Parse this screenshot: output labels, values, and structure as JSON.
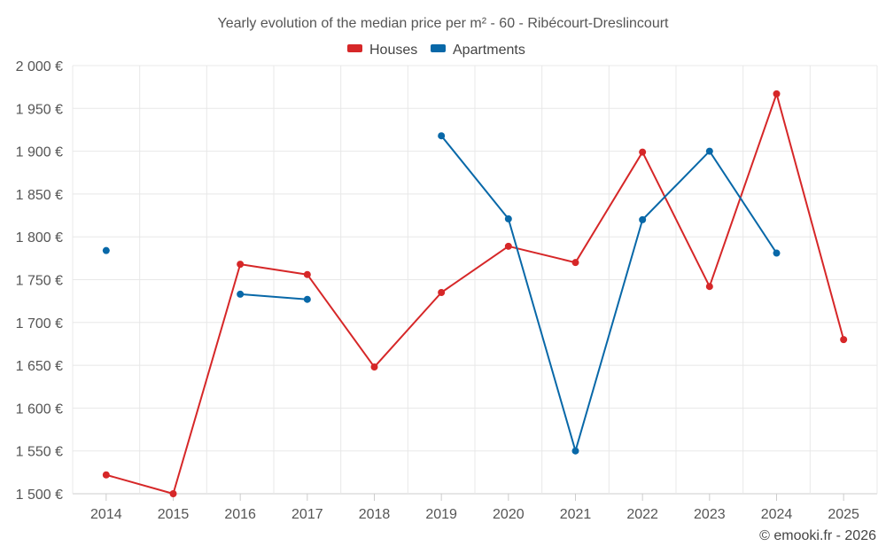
{
  "chart_data": {
    "type": "line",
    "title": "Yearly evolution of the median price per m² - 60 - Ribécourt-Dreslincourt",
    "categories": [
      "2014",
      "2015",
      "2016",
      "2017",
      "2018",
      "2019",
      "2020",
      "2021",
      "2022",
      "2023",
      "2024",
      "2025"
    ],
    "y_ticks": [
      1500,
      1550,
      1600,
      1650,
      1700,
      1750,
      1800,
      1850,
      1900,
      1950,
      2000
    ],
    "y_tick_labels": [
      "1 500 €",
      "1 550 €",
      "1 600 €",
      "1 650 €",
      "1 700 €",
      "1 750 €",
      "1 800 €",
      "1 850 €",
      "1 900 €",
      "1 950 €",
      "2 000 €"
    ],
    "ylim": [
      1500,
      2000
    ],
    "xlabel": "",
    "ylabel": "",
    "grid": true,
    "legend_position": "top-center",
    "series": [
      {
        "name": "Houses",
        "color": "#d62728",
        "values": [
          1522,
          1500,
          1768,
          1756,
          1648,
          1735,
          1789,
          1770,
          1899,
          1742,
          1967,
          1680
        ]
      },
      {
        "name": "Apartments",
        "color": "#0868a8",
        "values": [
          1784,
          null,
          1733,
          1727,
          null,
          1918,
          1821,
          1550,
          1820,
          1900,
          1781,
          null
        ]
      }
    ],
    "credit": "© emooki.fr - 2026"
  }
}
